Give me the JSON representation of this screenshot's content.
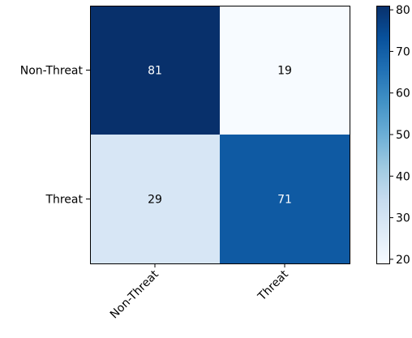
{
  "chart_data": {
    "type": "heatmap",
    "title": "",
    "xlabel": "",
    "ylabel": "",
    "row_labels": [
      "Non-Threat",
      "Threat"
    ],
    "col_labels": [
      "Non-Threat",
      "Threat"
    ],
    "values": [
      [
        81,
        19
      ],
      [
        29,
        71
      ]
    ],
    "colormap": "Blues",
    "color_range": [
      19,
      81
    ],
    "colorbar": {
      "ticks": [
        20,
        30,
        40,
        50,
        60,
        70,
        80
      ],
      "tick_labels": [
        "20",
        "30",
        "40",
        "50",
        "60",
        "70",
        "80"
      ]
    },
    "grid": false
  }
}
